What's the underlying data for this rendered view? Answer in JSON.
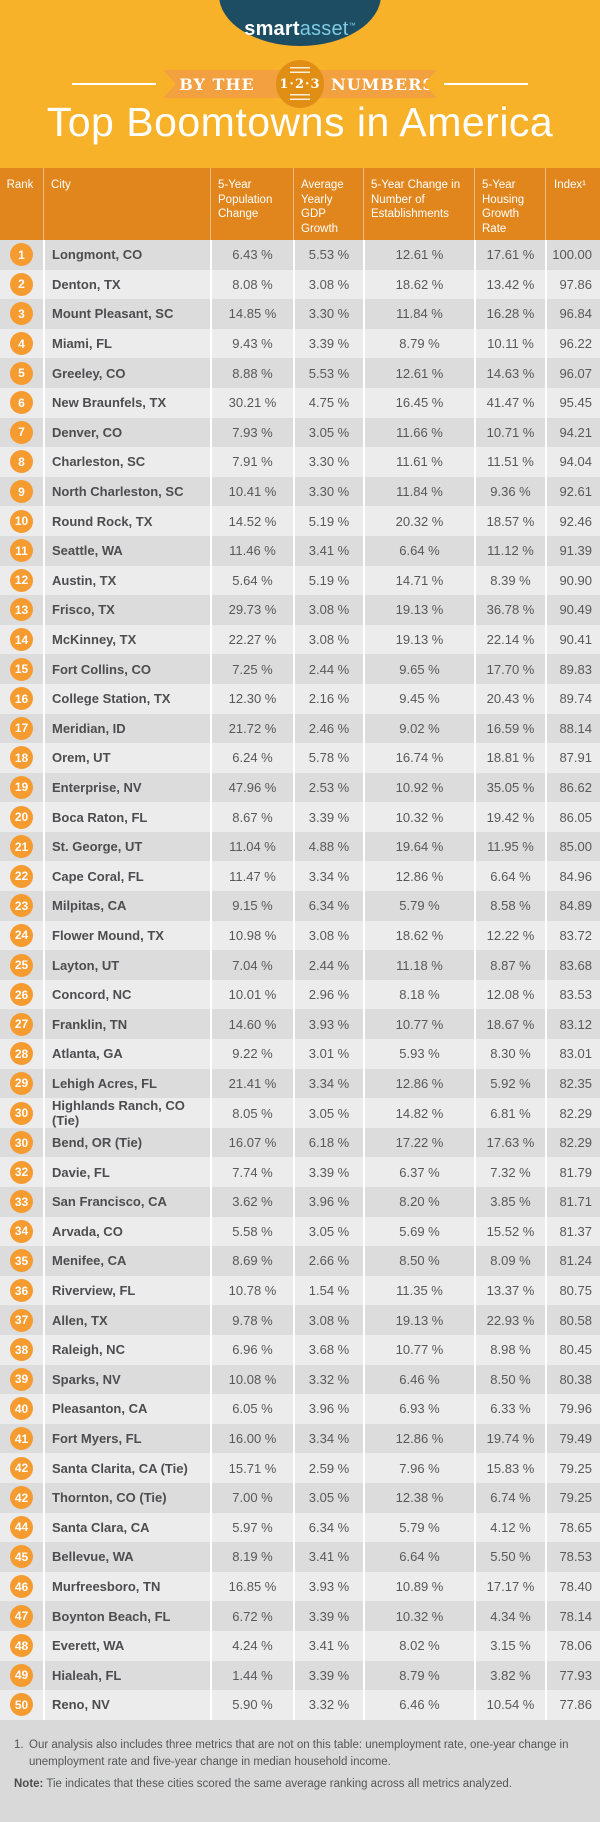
{
  "colors": {
    "background_orange": "#f8b22a",
    "header_band_orange": "#e0861d",
    "ribbon_orange": "#f2a040",
    "badge_circle_orange": "#e18e15",
    "rank_badge_orange": "#f59b30",
    "logo_navy": "#1c4d63",
    "logo_asset_blue": "#7ecbe3",
    "row_dark_gray": "#dcdcdc",
    "row_light_gray": "#ececec",
    "footer_gray": "#d9d9d9",
    "text_dark": "#4d4d4f"
  },
  "logo": {
    "part1": "smart",
    "part2": "asset",
    "tm": "™"
  },
  "banner": {
    "left": "BY THE",
    "badge": "1·2·3",
    "right": "NUMBERS"
  },
  "title": "Top Boomtowns in America",
  "table": {
    "headers": [
      "Rank",
      "City",
      "5-Year Population Change",
      "Average Yearly GDP Growth",
      "5-Year Change in Number of Establishments",
      "5-Year Housing Growth Rate",
      "Index¹"
    ],
    "rows": [
      [
        "1",
        "Longmont, CO",
        "6.43 %",
        "5.53 %",
        "12.61 %",
        "17.61 %",
        "100.00"
      ],
      [
        "2",
        "Denton, TX",
        "8.08 %",
        "3.08 %",
        "18.62 %",
        "13.42 %",
        "97.86"
      ],
      [
        "3",
        "Mount Pleasant, SC",
        "14.85 %",
        "3.30 %",
        "11.84 %",
        "16.28 %",
        "96.84"
      ],
      [
        "4",
        "Miami, FL",
        "9.43 %",
        "3.39 %",
        "8.79 %",
        "10.11 %",
        "96.22"
      ],
      [
        "5",
        "Greeley, CO",
        "8.88 %",
        "5.53 %",
        "12.61 %",
        "14.63 %",
        "96.07"
      ],
      [
        "6",
        "New Braunfels, TX",
        "30.21 %",
        "4.75 %",
        "16.45 %",
        "41.47 %",
        "95.45"
      ],
      [
        "7",
        "Denver, CO",
        "7.93 %",
        "3.05 %",
        "11.66 %",
        "10.71 %",
        "94.21"
      ],
      [
        "8",
        "Charleston, SC",
        "7.91 %",
        "3.30 %",
        "11.61 %",
        "11.51 %",
        "94.04"
      ],
      [
        "9",
        "North Charleston, SC",
        "10.41 %",
        "3.30 %",
        "11.84 %",
        "9.36 %",
        "92.61"
      ],
      [
        "10",
        "Round Rock, TX",
        "14.52 %",
        "5.19 %",
        "20.32 %",
        "18.57 %",
        "92.46"
      ],
      [
        "11",
        "Seattle, WA",
        "11.46 %",
        "3.41 %",
        "6.64 %",
        "11.12 %",
        "91.39"
      ],
      [
        "12",
        "Austin, TX",
        "5.64 %",
        "5.19 %",
        "14.71 %",
        "8.39 %",
        "90.90"
      ],
      [
        "13",
        "Frisco, TX",
        "29.73 %",
        "3.08 %",
        "19.13 %",
        "36.78 %",
        "90.49"
      ],
      [
        "14",
        "McKinney, TX",
        "22.27 %",
        "3.08 %",
        "19.13 %",
        "22.14 %",
        "90.41"
      ],
      [
        "15",
        "Fort Collins, CO",
        "7.25 %",
        "2.44 %",
        "9.65 %",
        "17.70 %",
        "89.83"
      ],
      [
        "16",
        "College Station, TX",
        "12.30 %",
        "2.16 %",
        "9.45 %",
        "20.43 %",
        "89.74"
      ],
      [
        "17",
        "Meridian, ID",
        "21.72 %",
        "2.46 %",
        "9.02 %",
        "16.59 %",
        "88.14"
      ],
      [
        "18",
        "Orem, UT",
        "6.24 %",
        "5.78 %",
        "16.74 %",
        "18.81 %",
        "87.91"
      ],
      [
        "19",
        "Enterprise, NV",
        "47.96 %",
        "2.53 %",
        "10.92 %",
        "35.05 %",
        "86.62"
      ],
      [
        "20",
        "Boca Raton, FL",
        "8.67 %",
        "3.39 %",
        "10.32 %",
        "19.42 %",
        "86.05"
      ],
      [
        "21",
        "St. George, UT",
        "11.04 %",
        "4.88 %",
        "19.64 %",
        "11.95 %",
        "85.00"
      ],
      [
        "22",
        "Cape Coral, FL",
        "11.47 %",
        "3.34 %",
        "12.86 %",
        "6.64 %",
        "84.96"
      ],
      [
        "23",
        "Milpitas, CA",
        "9.15 %",
        "6.34 %",
        "5.79 %",
        "8.58 %",
        "84.89"
      ],
      [
        "24",
        "Flower Mound, TX",
        "10.98 %",
        "3.08 %",
        "18.62 %",
        "12.22 %",
        "83.72"
      ],
      [
        "25",
        "Layton, UT",
        "7.04 %",
        "2.44 %",
        "11.18 %",
        "8.87 %",
        "83.68"
      ],
      [
        "26",
        "Concord, NC",
        "10.01 %",
        "2.96 %",
        "8.18 %",
        "12.08 %",
        "83.53"
      ],
      [
        "27",
        "Franklin, TN",
        "14.60 %",
        "3.93 %",
        "10.77 %",
        "18.67 %",
        "83.12"
      ],
      [
        "28",
        "Atlanta, GA",
        "9.22 %",
        "3.01 %",
        "5.93 %",
        "8.30 %",
        "83.01"
      ],
      [
        "29",
        "Lehigh Acres, FL",
        "21.41 %",
        "3.34 %",
        "12.86 %",
        "5.92 %",
        "82.35"
      ],
      [
        "30",
        "Highlands Ranch, CO (Tie)",
        "8.05 %",
        "3.05 %",
        "14.82 %",
        "6.81 %",
        "82.29"
      ],
      [
        "30",
        "Bend, OR (Tie)",
        "16.07 %",
        "6.18 %",
        "17.22 %",
        "17.63 %",
        "82.29"
      ],
      [
        "32",
        "Davie, FL",
        "7.74 %",
        "3.39 %",
        "6.37 %",
        "7.32 %",
        "81.79"
      ],
      [
        "33",
        "San Francisco, CA",
        "3.62 %",
        "3.96 %",
        "8.20 %",
        "3.85 %",
        "81.71"
      ],
      [
        "34",
        "Arvada, CO",
        "5.58 %",
        "3.05 %",
        "5.69 %",
        "15.52 %",
        "81.37"
      ],
      [
        "35",
        "Menifee, CA",
        "8.69 %",
        "2.66 %",
        "8.50 %",
        "8.09 %",
        "81.24"
      ],
      [
        "36",
        "Riverview, FL",
        "10.78 %",
        "1.54 %",
        "11.35 %",
        "13.37 %",
        "80.75"
      ],
      [
        "37",
        "Allen, TX",
        "9.78 %",
        "3.08 %",
        "19.13 %",
        "22.93 %",
        "80.58"
      ],
      [
        "38",
        "Raleigh, NC",
        "6.96 %",
        "3.68 %",
        "10.77 %",
        "8.98 %",
        "80.45"
      ],
      [
        "39",
        "Sparks, NV",
        "10.08 %",
        "3.32 %",
        "6.46 %",
        "8.50 %",
        "80.38"
      ],
      [
        "40",
        "Pleasanton, CA",
        "6.05 %",
        "3.96 %",
        "6.93 %",
        "6.33 %",
        "79.96"
      ],
      [
        "41",
        "Fort Myers, FL",
        "16.00 %",
        "3.34 %",
        "12.86 %",
        "19.74 %",
        "79.49"
      ],
      [
        "42",
        "Santa Clarita, CA (Tie)",
        "15.71 %",
        "2.59 %",
        "7.96 %",
        "15.83 %",
        "79.25"
      ],
      [
        "42",
        "Thornton, CO (Tie)",
        "7.00 %",
        "3.05 %",
        "12.38 %",
        "6.74 %",
        "79.25"
      ],
      [
        "44",
        "Santa Clara, CA",
        "5.97 %",
        "6.34 %",
        "5.79 %",
        "4.12 %",
        "78.65"
      ],
      [
        "45",
        "Bellevue, WA",
        "8.19 %",
        "3.41 %",
        "6.64 %",
        "5.50 %",
        "78.53"
      ],
      [
        "46",
        "Murfreesboro, TN",
        "16.85 %",
        "3.93 %",
        "10.89 %",
        "17.17 %",
        "78.40"
      ],
      [
        "47",
        "Boynton Beach, FL",
        "6.72 %",
        "3.39 %",
        "10.32 %",
        "4.34 %",
        "78.14"
      ],
      [
        "48",
        "Everett, WA",
        "4.24 %",
        "3.41 %",
        "8.02 %",
        "3.15 %",
        "78.06"
      ],
      [
        "49",
        "Hialeah, FL",
        "1.44 %",
        "3.39 %",
        "8.79 %",
        "3.82 %",
        "77.93"
      ],
      [
        "50",
        "Reno, NV",
        "5.90 %",
        "3.32 %",
        "6.46 %",
        "10.54 %",
        "77.86"
      ]
    ]
  },
  "footnotes": {
    "note1_num": "1.",
    "note1_text": "Our analysis also includes three metrics that are not on this table: unemployment rate, one-year change in unemployment rate and five-year change in median household income.",
    "note2_label": "Note:",
    "note2_text": " Tie indicates that these cities scored the same average ranking across all metrics analyzed."
  }
}
